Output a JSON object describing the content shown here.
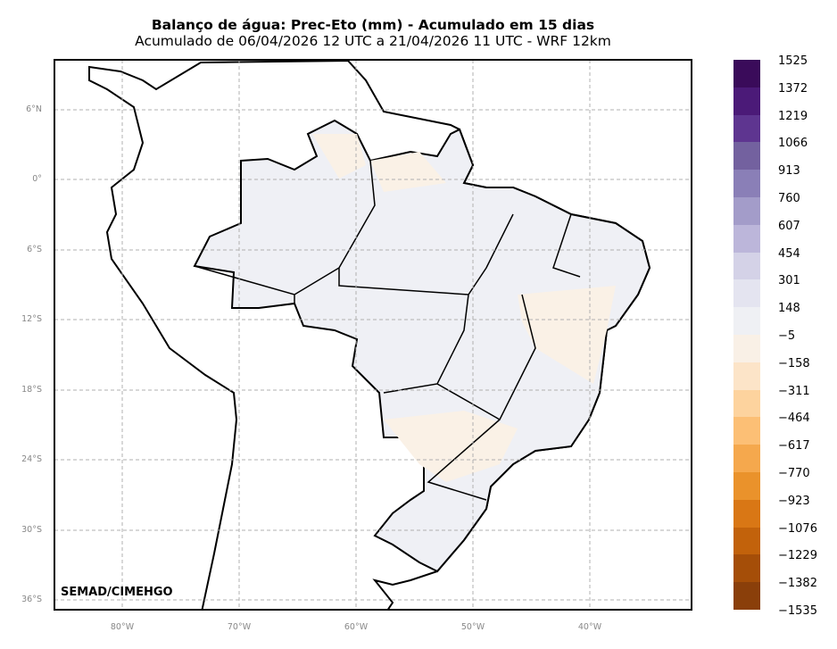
{
  "title": "Balanço de água: Prec-Eto (mm) - Acumulado em 15 dias",
  "subtitle": "Acumulado de 06/04/2026 12 UTC a 21/04/2026 11 UTC - WRF 12km",
  "credit": "SEMAD/CIMEHGO",
  "lat_ticks": [
    "6°N",
    "0°",
    "6°S",
    "12°S",
    "18°S",
    "24°S",
    "30°S",
    "36°S"
  ],
  "lon_ticks": [
    "80°W",
    "70°W",
    "60°W",
    "50°W",
    "40°W"
  ],
  "colorbar": {
    "labels": [
      "1525",
      "1372",
      "1219",
      "1066",
      "913",
      "760",
      "607",
      "454",
      "301",
      "148",
      "−5",
      "−158",
      "−311",
      "−464",
      "−617",
      "−770",
      "−923",
      "−1076",
      "−1229",
      "−1382",
      "−1535"
    ],
    "colors": [
      "#3a0b5a",
      "#4b1a78",
      "#5e3590",
      "#73619f",
      "#8a7fb7",
      "#a39cc9",
      "#bcb6da",
      "#d4d2e7",
      "#e4e4f0",
      "#eff0f4",
      "#f9f0e6",
      "#fce4c8",
      "#fdd39e",
      "#fcbf75",
      "#f5a84d",
      "#ea922b",
      "#d97715",
      "#c2620b",
      "#a54e08",
      "#8a3f0a"
    ]
  }
}
